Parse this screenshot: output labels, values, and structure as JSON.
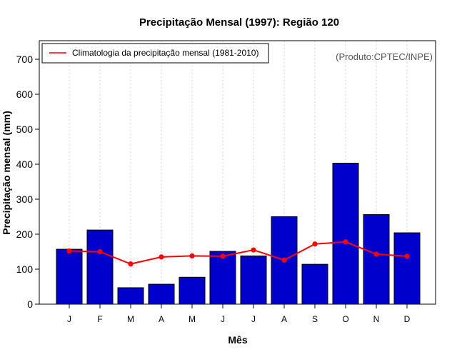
{
  "chart_data": {
    "type": "bar",
    "title": "Precipitação Mensal (1997): Região 120",
    "xlabel": "Mês",
    "ylabel": "Precipitação mensal (mm)",
    "ylim": [
      0,
      750
    ],
    "yticks": [
      0,
      100,
      200,
      300,
      400,
      500,
      600,
      700
    ],
    "categories": [
      "J",
      "F",
      "M",
      "A",
      "M",
      "J",
      "J",
      "A",
      "S",
      "O",
      "N",
      "D"
    ],
    "series": [
      {
        "name": "Precipitação mensal (1997)",
        "type": "bar",
        "color": "#0000CD",
        "values": [
          157,
          212,
          47,
          57,
          77,
          151,
          138,
          250,
          114,
          403,
          256,
          204
        ]
      },
      {
        "name": "Climatologia da precipitação mensal (1981-2010)",
        "type": "line",
        "color": "#FF0000",
        "values": [
          152,
          150,
          115,
          135,
          138,
          137,
          155,
          126,
          172,
          178,
          143,
          137
        ]
      }
    ],
    "legend_label": "Climatologia da precipitação mensal (1981-2010)",
    "legend_position": "top-left",
    "credit": "(Produto:CPTEC/INPE)",
    "grid": "vertical-dotted"
  }
}
